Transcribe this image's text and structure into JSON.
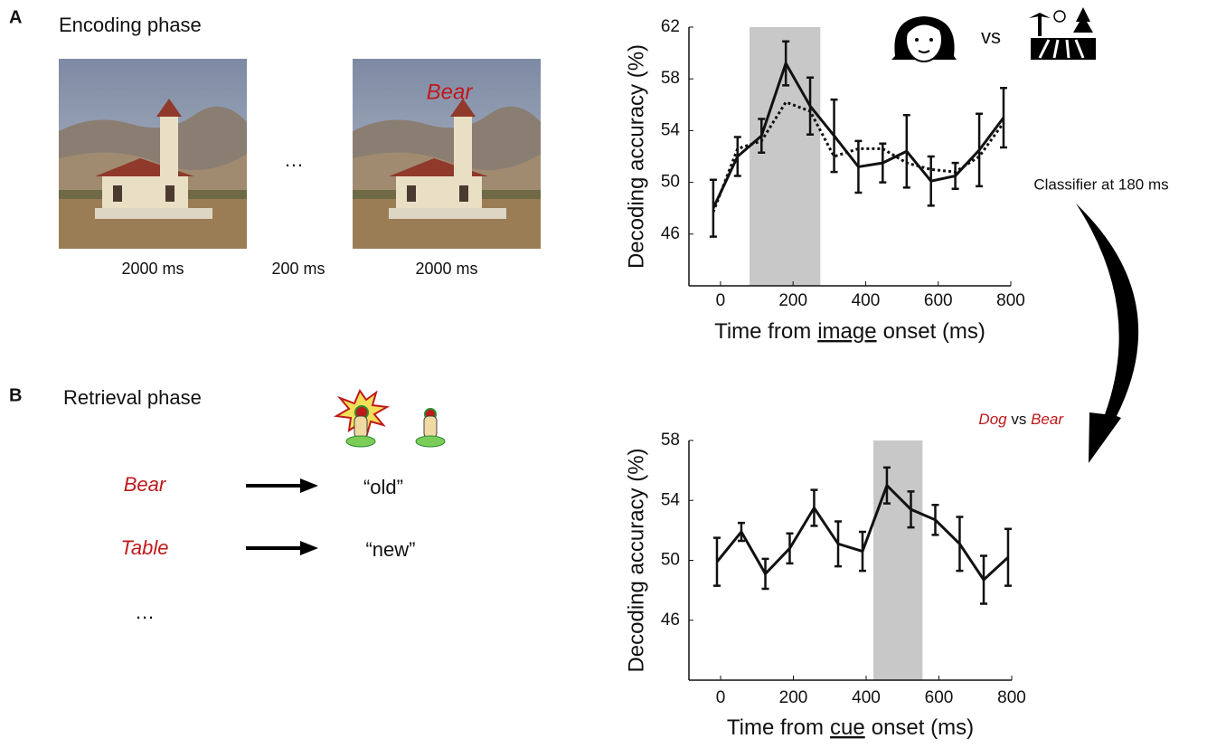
{
  "panels": {
    "a": {
      "letter": "A",
      "title": "Encoding phase",
      "word": "Bear",
      "durations": [
        "2000 ms",
        "200 ms",
        "2000 ms"
      ],
      "ellipsis": "…"
    },
    "b": {
      "letter": "B",
      "title": "Retrieval phase",
      "trials": [
        {
          "cue": "Bear",
          "response": "“old”"
        },
        {
          "cue": "Table",
          "response": "“new”"
        }
      ],
      "ellipsis": "…"
    }
  },
  "annotations": {
    "top_compare": "vs",
    "classifier": "Classifier at 180 ms",
    "bottom_compare": [
      "Dog",
      "vs",
      "Bear"
    ]
  },
  "chart_data": [
    {
      "type": "line",
      "y_label": "Decoding accuracy (%)",
      "x_label": {
        "before": "Time from",
        "underlined": "image",
        "after": "onset (ms)"
      },
      "x": [
        -20,
        47,
        113,
        180,
        247,
        313,
        380,
        447,
        513,
        580,
        647,
        713,
        780
      ],
      "xlim": [
        -87,
        800
      ],
      "xticks": [
        0,
        200,
        400,
        600,
        800
      ],
      "ylim": [
        42,
        62
      ],
      "yticks": [
        46,
        50,
        54,
        58,
        62
      ],
      "shaded": [
        80,
        275
      ],
      "shade_color": "#c8c8c8",
      "grid": false,
      "series": [
        {
          "color": "#111111",
          "linestyle": "solid",
          "values": [
            48.0,
            52.0,
            53.6,
            59.2,
            55.9,
            53.6,
            51.2,
            51.5,
            52.4,
            50.1,
            50.5,
            52.5,
            55.0
          ],
          "errors": [
            2.2,
            1.5,
            1.3,
            1.7,
            2.2,
            2.8,
            2.0,
            1.5,
            2.8,
            1.9,
            1.0,
            2.8,
            2.3
          ]
        },
        {
          "color": "#111111",
          "linestyle": "dotted",
          "values": [
            47.7,
            52.6,
            53.2,
            56.2,
            55.5,
            52.0,
            52.6,
            52.6,
            51.5,
            51.0,
            50.8,
            52.0,
            54.6
          ]
        }
      ]
    },
    {
      "type": "line",
      "y_label": "Decoding accuracy (%)",
      "x_label": {
        "before": "Time from",
        "underlined": "cue",
        "after": "onset (ms)"
      },
      "x": [
        -10,
        57,
        123,
        190,
        257,
        323,
        390,
        457,
        523,
        590,
        657,
        723,
        790
      ],
      "xlim": [
        -87,
        800
      ],
      "xticks": [
        0,
        200,
        400,
        600,
        800
      ],
      "ylim": [
        42,
        58
      ],
      "yticks": [
        46,
        50,
        54,
        58
      ],
      "shaded": [
        420,
        555
      ],
      "shade_color": "#c8c8c8",
      "grid": false,
      "series": [
        {
          "color": "#111111",
          "linestyle": "solid",
          "values": [
            49.9,
            51.9,
            49.1,
            50.8,
            53.5,
            51.1,
            50.6,
            55.0,
            53.4,
            52.7,
            51.1,
            48.7,
            50.2
          ],
          "errors": [
            1.6,
            0.6,
            1.0,
            1.0,
            1.2,
            1.5,
            1.3,
            1.2,
            1.2,
            1.0,
            1.8,
            1.6,
            1.9
          ]
        }
      ]
    }
  ]
}
